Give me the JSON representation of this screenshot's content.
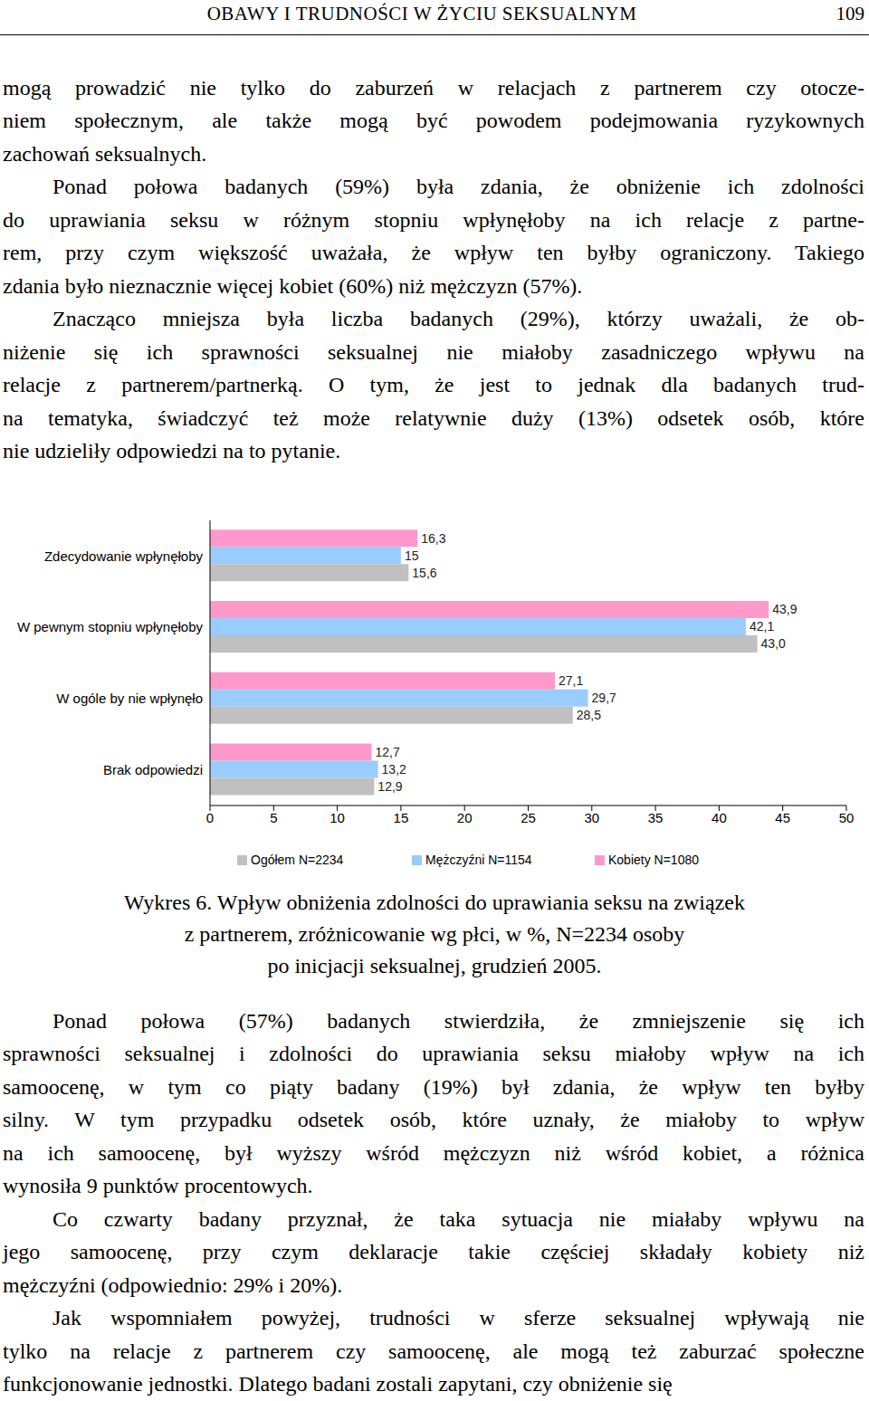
{
  "header": {
    "title": "OBAWY I TRUDNOŚCI W ŻYCIU SEKSUALNYM",
    "page": "109"
  },
  "body_top": [
    [
      "mogą prowadzić nie tylko do zaburzeń w relacjach z partnerem czy otocze-",
      "niem społecznym, ale także mogą być powodem podejmowania ryzykownych",
      "zachowań seksualnych."
    ],
    [
      "Ponad połowa badanych (59%) była zdania, że obniżenie ich zdolności",
      "do uprawiania seksu w różnym stopniu wpłynęłoby na ich relacje z partne-",
      "rem, przy czym większość uważała, że wpływ ten byłby ograniczony. Takiego",
      "zdania było nieznacznie więcej kobiet (60%) niż mężczyzn (57%)."
    ],
    [
      "Znacząco mniejsza była liczba badanych (29%), którzy uważali, że ob-",
      "niżenie się ich sprawności seksualnej nie miałoby zasadniczego wpływu na",
      "relacje z partnerem/partnerką. O tym, że jest to jednak dla badanych trud-",
      "na tematyka, świadczyć też może relatywnie duży (13%) odsetek osób, które",
      "nie udzieliły odpowiedzi na to pytanie."
    ]
  ],
  "chart_data": {
    "type": "bar",
    "orientation": "horizontal",
    "categories": [
      "Zdecydowanie wpłynęłoby",
      "W pewnym stopniu wpłynęłoby",
      "W ogóle by nie wpłynęło",
      "Brak odpowiedzi"
    ],
    "series": [
      {
        "name": "Ogółem N=2234",
        "color": "#c0c0c0",
        "values": [
          15.6,
          43.0,
          28.5,
          12.9
        ],
        "value_labels": [
          "15,6",
          "43,0",
          "28,5",
          "12,9"
        ]
      },
      {
        "name": "Mężczyźni N=1154",
        "color": "#99ccff",
        "values": [
          15,
          42.1,
          29.7,
          13.2
        ],
        "value_labels": [
          "15",
          "42,1",
          "29,7",
          "13,2"
        ]
      },
      {
        "name": "Kobiety N=1080",
        "color": "#ff99cc",
        "values": [
          16.3,
          43.9,
          27.1,
          12.7
        ],
        "value_labels": [
          "16,3",
          "43,9",
          "27,1",
          "12,7"
        ]
      }
    ],
    "xlim": [
      0,
      50
    ],
    "xticks": [
      0,
      5,
      10,
      15,
      20,
      25,
      30,
      35,
      40,
      45,
      50
    ],
    "data_labels": true,
    "legend": "bottom",
    "grid": false
  },
  "caption": [
    "Wykres 6. Wpływ obniżenia zdolności do uprawiania seksu na związek",
    "z partnerem, zróżnicowanie wg płci, w %, N=2234 osoby",
    "po inicjacji seksualnej, grudzień 2005."
  ],
  "body_bottom": [
    [
      "Ponad połowa (57%) badanych stwierdziła, że zmniejszenie się ich",
      "sprawności seksualnej i zdolności do uprawiania seksu miałoby wpływ na ich",
      "samoocenę, w tym co piąty badany (19%) był zdania, że wpływ ten byłby",
      "silny. W tym przypadku odsetek osób, które uznały, że miałoby to wpływ",
      "na ich samoocenę, był wyższy wśród mężczyzn niż wśród kobiet, a różnica",
      "wynosiła 9 punktów procentowych."
    ],
    [
      "Co czwarty badany przyznał, że taka sytuacja nie miałaby wpływu na",
      "jego samoocenę, przy czym deklaracje takie częściej składały kobiety niż",
      "mężczyźni (odpowiednio: 29% i 20%)."
    ],
    [
      "Jak wspomniałem powyżej, trudności w sferze seksualnej wpływają nie",
      "tylko na relacje z partnerem czy samoocenę, ale mogą też zaburzać społeczne",
      "funkcjonowanie jednostki. Dlatego badani zostali zapytani, czy obniżenie się"
    ]
  ]
}
